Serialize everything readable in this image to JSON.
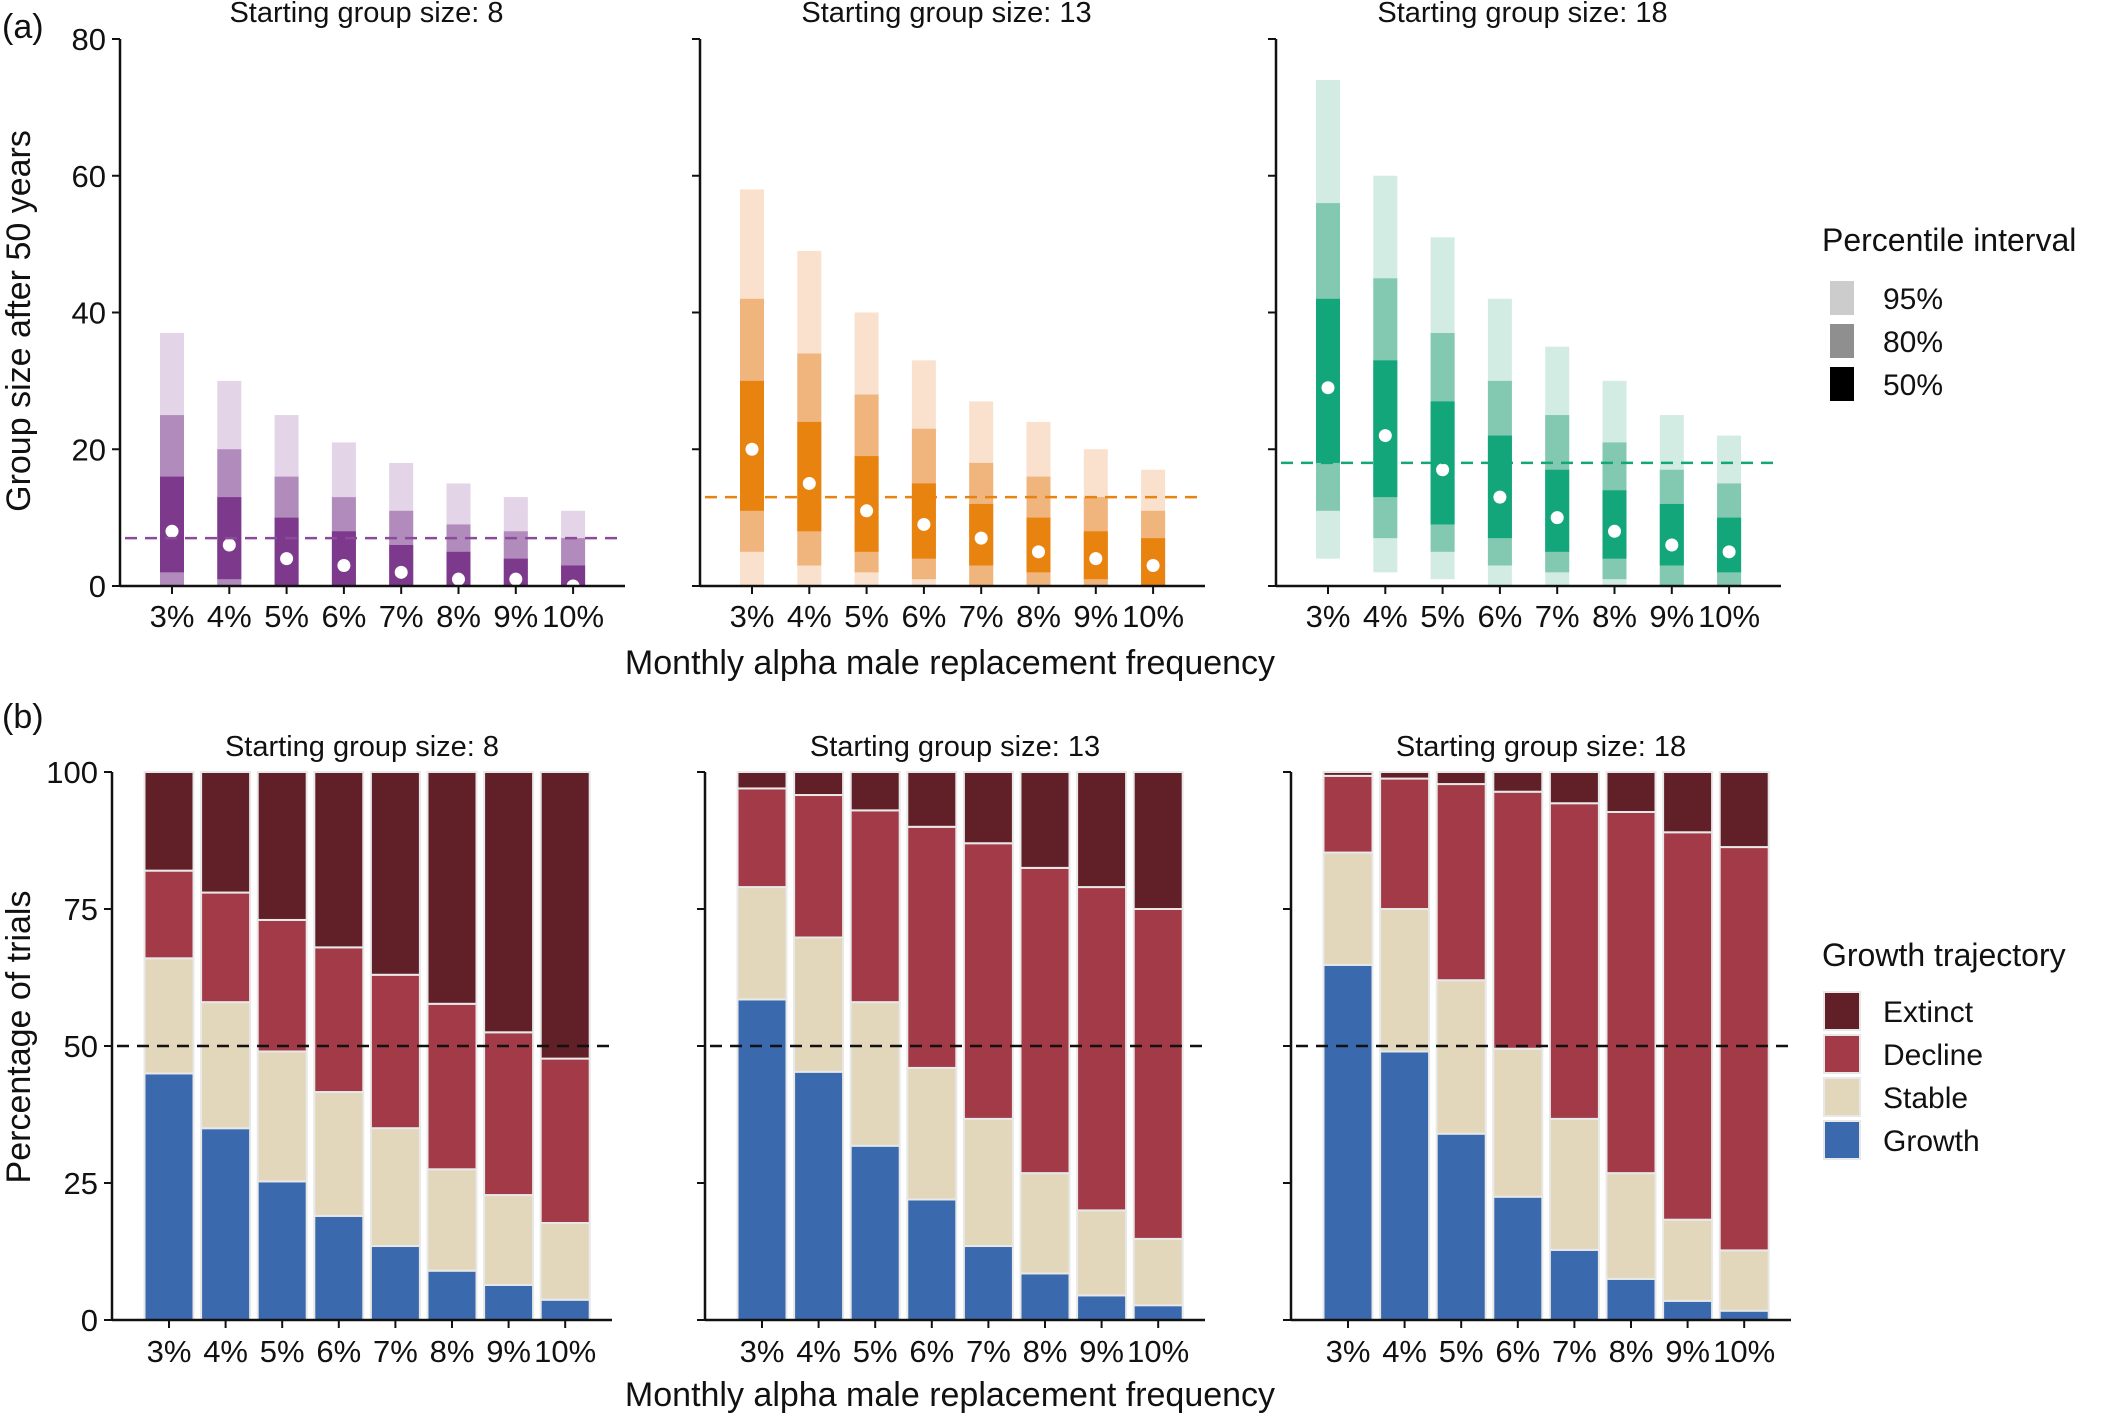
{
  "chart_data": [
    {
      "type": "interval",
      "panel_label": "(a)",
      "ylabel": "Group size after 50 years",
      "xlabel": "Monthly alpha male replacement frequency",
      "ylim": [
        0,
        80
      ],
      "yticks": [
        "0",
        "20",
        "40",
        "60",
        "80"
      ],
      "categories": [
        "3%",
        "4%",
        "5%",
        "6%",
        "7%",
        "8%",
        "9%",
        "10%"
      ],
      "legend": {
        "title": "Percentile interval",
        "placement": "right",
        "items": [
          {
            "label": "95%",
            "color": "#cccccc"
          },
          {
            "label": "80%",
            "color": "#8f8f8f"
          },
          {
            "label": "50%",
            "color": "#000000"
          }
        ]
      },
      "subplots": [
        {
          "title": "Starting group size: 8",
          "reference_line": 7,
          "colors": {
            "p50": "#7d3a8d",
            "p80": "#b28bbd",
            "p95": "#e3d4e7",
            "ref": "#8a4b9a"
          },
          "p95": {
            "lo": [
              0,
              0,
              0,
              0,
              0,
              0,
              0,
              0
            ],
            "hi": [
              37,
              30,
              25,
              21,
              18,
              15,
              13,
              11
            ]
          },
          "p80": {
            "lo": [
              0,
              0,
              0,
              0,
              0,
              0,
              0,
              0
            ],
            "hi": [
              25,
              20,
              16,
              13,
              11,
              9,
              8,
              7
            ]
          },
          "p50": {
            "lo": [
              2,
              1,
              0,
              0,
              0,
              0,
              0,
              0
            ],
            "hi": [
              16,
              13,
              10,
              8,
              6,
              5,
              4,
              3
            ]
          },
          "median": [
            8,
            6,
            4,
            3,
            2,
            1,
            1,
            0
          ]
        },
        {
          "title": "Starting group size: 13",
          "reference_line": 13,
          "colors": {
            "p50": "#e8830f",
            "p80": "#f0b47d",
            "p95": "#fae1cd",
            "ref": "#e8830f"
          },
          "p95": {
            "lo": [
              0,
              0,
              0,
              0,
              0,
              0,
              0,
              0
            ],
            "hi": [
              58,
              49,
              40,
              33,
              27,
              24,
              20,
              17
            ]
          },
          "p80": {
            "lo": [
              5,
              3,
              2,
              1,
              0,
              0,
              0,
              0
            ],
            "hi": [
              42,
              34,
              28,
              23,
              18,
              16,
              13,
              11
            ]
          },
          "p50": {
            "lo": [
              11,
              8,
              5,
              4,
              3,
              2,
              1,
              0
            ],
            "hi": [
              30,
              24,
              19,
              15,
              12,
              10,
              8,
              7
            ]
          },
          "median": [
            20,
            15,
            11,
            9,
            7,
            5,
            4,
            3
          ]
        },
        {
          "title": "Starting group size: 18",
          "reference_line": 18,
          "colors": {
            "p50": "#12a67a",
            "p80": "#83c9b1",
            "p95": "#d2ece3",
            "ref": "#12a67a"
          },
          "p95": {
            "lo": [
              4,
              2,
              1,
              0,
              0,
              0,
              0,
              0
            ],
            "hi": [
              74,
              60,
              51,
              42,
              35,
              30,
              25,
              22
            ]
          },
          "p80": {
            "lo": [
              11,
              7,
              5,
              3,
              2,
              1,
              0,
              0
            ],
            "hi": [
              56,
              45,
              37,
              30,
              25,
              21,
              17,
              15
            ]
          },
          "p50": {
            "lo": [
              18,
              13,
              9,
              7,
              5,
              4,
              3,
              2
            ],
            "hi": [
              42,
              33,
              27,
              22,
              17,
              14,
              12,
              10
            ]
          },
          "median": [
            29,
            22,
            17,
            13,
            10,
            8,
            6,
            5
          ]
        }
      ]
    },
    {
      "type": "bar",
      "stacked": true,
      "panel_label": "(b)",
      "ylabel": "Percentage of trials",
      "xlabel": "Monthly alpha male replacement frequency",
      "ylim": [
        0,
        100
      ],
      "yticks": [
        "0",
        "25",
        "50",
        "75",
        "100"
      ],
      "reference_line": 50,
      "categories": [
        "3%",
        "4%",
        "5%",
        "6%",
        "7%",
        "8%",
        "9%",
        "10%"
      ],
      "legend": {
        "title": "Growth trajectory",
        "placement": "right",
        "items": [
          {
            "label": "Extinct",
            "color": "#611f28"
          },
          {
            "label": "Decline",
            "color": "#a33a47"
          },
          {
            "label": "Stable",
            "color": "#e2d6bb"
          },
          {
            "label": "Growth",
            "color": "#3a69ad"
          }
        ]
      },
      "subplots": [
        {
          "title": "Starting group size: 8",
          "series": [
            {
              "name": "Growth",
              "values": [
                45,
                35,
                25.3,
                19,
                13.5,
                9,
                6.4,
                3.7
              ]
            },
            {
              "name": "Stable",
              "values": [
                21,
                23,
                23.7,
                22.6,
                21.5,
                18.5,
                16.4,
                14
              ]
            },
            {
              "name": "Decline",
              "values": [
                16,
                20,
                24,
                26.4,
                28,
                30.2,
                29.7,
                30
              ]
            },
            {
              "name": "Extinct",
              "values": [
                18,
                22,
                27,
                32,
                37,
                42.3,
                47.5,
                52.3
              ]
            }
          ]
        },
        {
          "title": "Starting group size: 13",
          "series": [
            {
              "name": "Growth",
              "values": [
                58.5,
                45.3,
                31.8,
                22,
                13.5,
                8.5,
                4.5,
                2.7
              ]
            },
            {
              "name": "Stable",
              "values": [
                20.5,
                24.5,
                26.2,
                24,
                23.2,
                18.3,
                15.5,
                12.1
              ]
            },
            {
              "name": "Decline",
              "values": [
                18,
                26,
                35,
                44,
                50.3,
                55.7,
                59,
                60.2
              ]
            },
            {
              "name": "Extinct",
              "values": [
                3,
                4.2,
                7,
                10,
                13,
                17.5,
                21,
                25
              ]
            }
          ]
        },
        {
          "title": "Starting group size: 18",
          "series": [
            {
              "name": "Growth",
              "values": [
                64.8,
                49,
                34,
                22.5,
                12.8,
                7.5,
                3.5,
                1.7
              ]
            },
            {
              "name": "Stable",
              "values": [
                20.5,
                26,
                28,
                27,
                23.9,
                19.3,
                14.8,
                11
              ]
            },
            {
              "name": "Decline",
              "values": [
                14,
                23.8,
                35.8,
                46.9,
                57.6,
                65.9,
                70.7,
                73.6
              ]
            },
            {
              "name": "Extinct",
              "values": [
                0.7,
                1.2,
                2.2,
                3.6,
                5.7,
                7.3,
                11,
                13.7
              ]
            }
          ]
        }
      ]
    }
  ]
}
